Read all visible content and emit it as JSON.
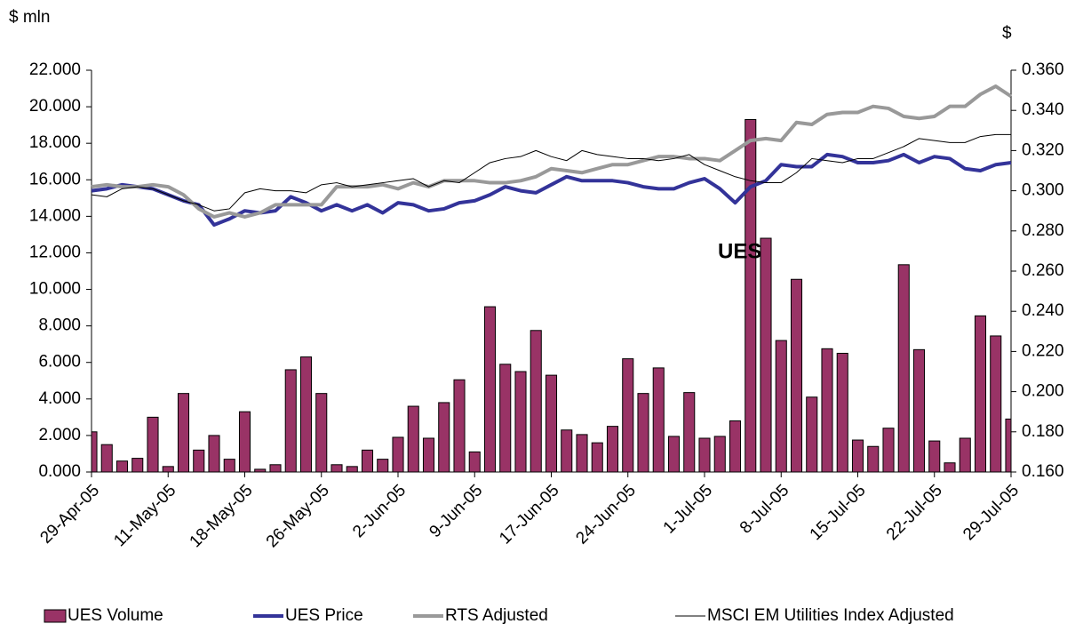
{
  "chart_data": {
    "type": "combo",
    "y_label": "$ mln",
    "y2_label": "$",
    "annotation": "UES",
    "categories": [
      "29-Apr-05",
      null,
      null,
      null,
      null,
      "11-May-05",
      null,
      null,
      null,
      null,
      "18-May-05",
      null,
      null,
      null,
      null,
      "26-May-05",
      null,
      null,
      null,
      null,
      "2-Jun-05",
      null,
      null,
      null,
      null,
      "9-Jun-05",
      null,
      null,
      null,
      null,
      "17-Jun-05",
      null,
      null,
      null,
      null,
      "24-Jun-05",
      null,
      null,
      null,
      null,
      "1-Jul-05",
      null,
      null,
      null,
      null,
      "8-Jul-05",
      null,
      null,
      null,
      null,
      "15-Jul-05",
      null,
      null,
      null,
      null,
      "22-Jul-05",
      null,
      null,
      null,
      null,
      "29-Jul-05"
    ],
    "series": [
      {
        "name": "UES Volume",
        "type": "bar",
        "color": "#993366",
        "values": [
          2.2,
          1.5,
          0.6,
          0.75,
          3.0,
          0.3,
          4.3,
          1.2,
          2.0,
          0.7,
          3.3,
          0.15,
          0.4,
          5.6,
          6.3,
          4.3,
          0.4,
          0.3,
          1.2,
          0.7,
          1.9,
          3.6,
          1.85,
          3.8,
          5.05,
          1.1,
          9.05,
          5.9,
          5.5,
          7.75,
          5.3,
          2.3,
          2.05,
          1.6,
          2.5,
          6.2,
          4.3,
          5.7,
          1.95,
          4.35,
          1.85,
          1.95,
          2.8,
          19.3,
          12.8,
          7.2,
          10.55,
          4.1,
          6.75,
          6.5,
          1.75,
          1.4,
          2.4,
          11.35,
          6.7,
          1.7,
          0.5,
          1.85,
          8.55,
          7.45,
          2.9
        ]
      },
      {
        "name": "UES Price",
        "type": "line",
        "axis": "y2",
        "color": "#333399",
        "line_width": 4,
        "values": [
          0.3,
          0.301,
          0.303,
          0.302,
          0.301,
          0.298,
          0.295,
          0.293,
          0.283,
          0.286,
          0.29,
          0.289,
          0.29,
          0.297,
          0.294,
          0.29,
          0.293,
          0.29,
          0.293,
          0.289,
          0.294,
          0.293,
          0.29,
          0.291,
          0.294,
          0.295,
          0.298,
          0.302,
          0.3,
          0.299,
          0.303,
          0.307,
          0.305,
          0.305,
          0.305,
          0.304,
          0.302,
          0.301,
          0.301,
          0.304,
          0.306,
          0.301,
          0.294,
          0.302,
          0.305,
          0.313,
          0.312,
          0.312,
          0.318,
          0.317,
          0.314,
          0.314,
          0.315,
          0.318,
          0.314,
          0.317,
          0.316,
          0.311,
          0.31,
          0.313,
          0.314
        ]
      },
      {
        "name": "RTS Adjusted",
        "type": "line",
        "axis": "y2",
        "color": "#999999",
        "line_width": 4,
        "values": [
          0.302,
          0.303,
          0.302,
          0.302,
          0.303,
          0.302,
          0.298,
          0.291,
          0.287,
          0.289,
          0.287,
          0.289,
          0.293,
          0.293,
          0.293,
          0.293,
          0.302,
          0.302,
          0.302,
          0.303,
          0.301,
          0.304,
          0.302,
          0.305,
          0.305,
          0.305,
          0.304,
          0.304,
          0.305,
          0.307,
          0.311,
          0.31,
          0.309,
          0.311,
          0.313,
          0.313,
          0.315,
          0.317,
          0.317,
          0.316,
          0.316,
          0.315,
          0.32,
          0.325,
          0.326,
          0.325,
          0.334,
          0.333,
          0.338,
          0.339,
          0.339,
          0.342,
          0.341,
          0.337,
          0.336,
          0.337,
          0.342,
          0.342,
          0.348,
          0.352,
          0.347
        ]
      },
      {
        "name": "MSCI EM Utilities Index Adjusted",
        "type": "line",
        "axis": "y2",
        "color": "#000000",
        "line_width": 1,
        "values": [
          0.298,
          0.297,
          0.301,
          0.302,
          0.301,
          0.298,
          0.295,
          0.293,
          0.29,
          0.291,
          0.299,
          0.301,
          0.3,
          0.3,
          0.299,
          0.303,
          0.304,
          0.302,
          0.303,
          0.304,
          0.305,
          0.306,
          0.302,
          0.305,
          0.304,
          0.309,
          0.314,
          0.316,
          0.317,
          0.32,
          0.317,
          0.315,
          0.32,
          0.318,
          0.317,
          0.316,
          0.316,
          0.315,
          0.316,
          0.318,
          0.313,
          0.31,
          0.307,
          0.305,
          0.304,
          0.304,
          0.309,
          0.316,
          0.315,
          0.314,
          0.316,
          0.316,
          0.319,
          0.322,
          0.326,
          0.325,
          0.324,
          0.324,
          0.327,
          0.328,
          0.328
        ]
      }
    ],
    "ylim": [
      0,
      22
    ],
    "yticks": [
      {
        "value": 0,
        "label": "0.000"
      },
      {
        "value": 2,
        "label": "2.000"
      },
      {
        "value": 4,
        "label": "4.000"
      },
      {
        "value": 6,
        "label": "6.000"
      },
      {
        "value": 8,
        "label": "8.000"
      },
      {
        "value": 10,
        "label": "10.000"
      },
      {
        "value": 12,
        "label": "12.000"
      },
      {
        "value": 14,
        "label": "14.000"
      },
      {
        "value": 16,
        "label": "16.000"
      },
      {
        "value": 18,
        "label": "18.000"
      },
      {
        "value": 20,
        "label": "20.000"
      },
      {
        "value": 22,
        "label": "22.000"
      }
    ],
    "y2lim": [
      0.16,
      0.36
    ],
    "y2ticks": [
      {
        "value": 0.16,
        "label": "0.160"
      },
      {
        "value": 0.18,
        "label": "0.180"
      },
      {
        "value": 0.2,
        "label": "0.200"
      },
      {
        "value": 0.22,
        "label": "0.220"
      },
      {
        "value": 0.24,
        "label": "0.240"
      },
      {
        "value": 0.26,
        "label": "0.260"
      },
      {
        "value": 0.28,
        "label": "0.280"
      },
      {
        "value": 0.3,
        "label": "0.300"
      },
      {
        "value": 0.32,
        "label": "0.320"
      },
      {
        "value": 0.34,
        "label": "0.340"
      },
      {
        "value": 0.36,
        "label": "0.360"
      }
    ],
    "grid": false,
    "legend": "bottom"
  }
}
